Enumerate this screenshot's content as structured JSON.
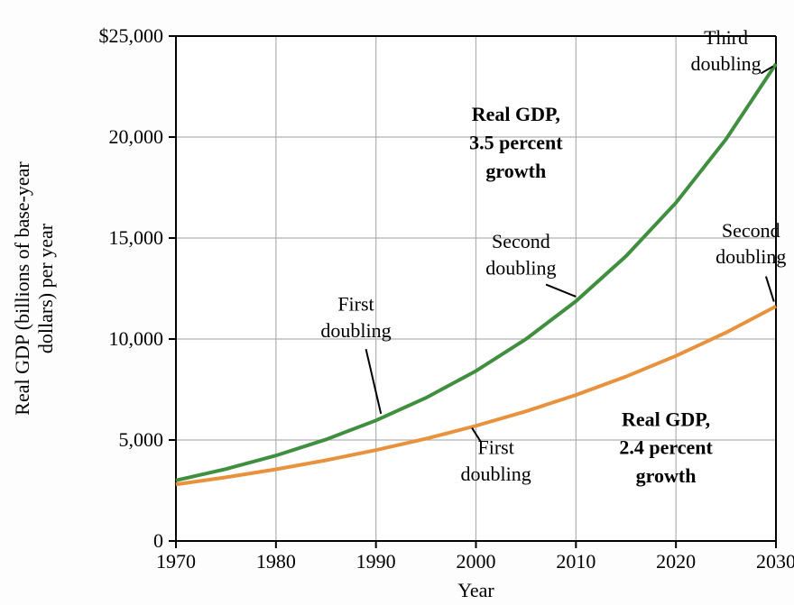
{
  "chart": {
    "type": "line",
    "background_color": "#fdfdfd",
    "plot_bg": "#ffffff",
    "grid_color": "#b0b0b0",
    "axis_color": "#000000",
    "xlabel": "Year",
    "ylabel_line1": "Real GDP (billions of base-year",
    "ylabel_line2": "dollars) per year",
    "label_fontsize": 22,
    "tick_fontsize": 22,
    "xlim": [
      1970,
      2030
    ],
    "ylim": [
      0,
      25000
    ],
    "xticks": [
      1970,
      1980,
      1990,
      2000,
      2010,
      2020,
      2030
    ],
    "yticks": [
      0,
      5000,
      10000,
      15000,
      20000,
      25000
    ],
    "ytick_labels": [
      "0",
      "5,000",
      "10,000",
      "15,000",
      "20,000",
      "$25,000"
    ],
    "xtick_labels": [
      "1970",
      "1980",
      "1990",
      "2000",
      "2010",
      "2020",
      "2030"
    ],
    "series": {
      "high": {
        "label1": "Real GDP,",
        "label2": "3.5 percent",
        "label3": "growth",
        "color": "#3f8f3f",
        "line_width": 4,
        "x": [
          1970,
          1975,
          1980,
          1985,
          1990,
          1995,
          2000,
          2005,
          2010,
          2015,
          2020,
          2025,
          2030
        ],
        "y": [
          3000,
          3563,
          4231,
          5025,
          5968,
          7088,
          8417,
          9997,
          11873,
          14101,
          16747,
          19889,
          23621
        ]
      },
      "low": {
        "label1": "Real GDP,",
        "label2": "2.4 percent",
        "label3": "growth",
        "color": "#e8923e",
        "line_width": 4,
        "x": [
          1970,
          1975,
          1980,
          1985,
          1990,
          1995,
          2000,
          2005,
          2010,
          2015,
          2020,
          2025,
          2030
        ],
        "y": [
          2800,
          3152,
          3549,
          3996,
          4499,
          5066,
          5703,
          6421,
          7230,
          8140,
          9165,
          10319,
          11618
        ]
      }
    },
    "annotations": {
      "high_first": {
        "line1": "First",
        "line2": "doubling"
      },
      "high_second": {
        "line1": "Second",
        "line2": "doubling"
      },
      "high_third": {
        "line1": "Third",
        "line2": "doubling"
      },
      "low_first": {
        "line1": "First",
        "line2": "doubling"
      },
      "low_second": {
        "line1": "Second",
        "line2": "doubling"
      }
    }
  }
}
